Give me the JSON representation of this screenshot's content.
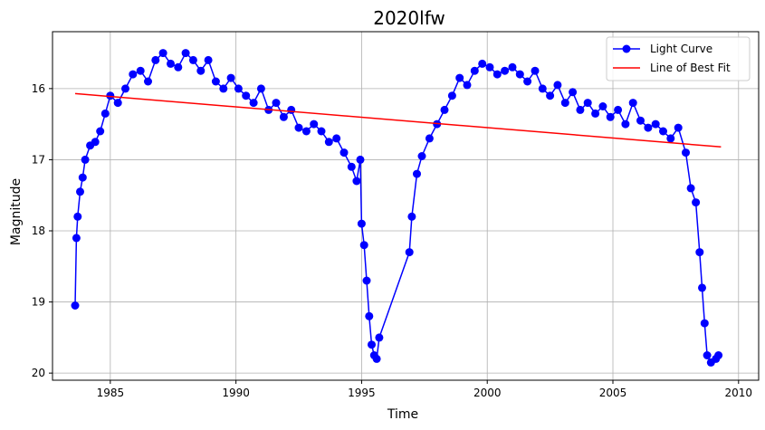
{
  "chart_data": {
    "type": "line",
    "title": "2020lfw",
    "xlabel": "Time",
    "ylabel": "Magnitude",
    "xlim": [
      1982.7,
      2010.8
    ],
    "ylim": [
      20.1,
      15.2
    ],
    "y_inverted": true,
    "xticks": [
      1985,
      1990,
      1995,
      2000,
      2005,
      2010
    ],
    "yticks": [
      16,
      17,
      18,
      19,
      20
    ],
    "grid": true,
    "legend_position": "top-right",
    "series": [
      {
        "name": "Light Curve",
        "color": "#0000ff",
        "marker": "circle",
        "x": [
          1983.6,
          1983.65,
          1983.7,
          1983.8,
          1983.9,
          1984.0,
          1984.2,
          1984.4,
          1984.6,
          1984.8,
          1985.0,
          1985.3,
          1985.6,
          1985.9,
          1986.2,
          1986.5,
          1986.8,
          1987.1,
          1987.4,
          1987.7,
          1988.0,
          1988.3,
          1988.6,
          1988.9,
          1989.2,
          1989.5,
          1989.8,
          1990.1,
          1990.4,
          1990.7,
          1991.0,
          1991.3,
          1991.6,
          1991.9,
          1992.2,
          1992.5,
          1992.8,
          1993.1,
          1993.4,
          1993.7,
          1994.0,
          1994.3,
          1994.6,
          1994.8,
          1994.95,
          1995.0,
          1995.1,
          1995.2,
          1995.3,
          1995.4,
          1995.5,
          1995.6,
          1995.7,
          1996.9,
          1997.0,
          1997.2,
          1997.4,
          1997.7,
          1998.0,
          1998.3,
          1998.6,
          1998.9,
          1999.2,
          1999.5,
          1999.8,
          2000.1,
          2000.4,
          2000.7,
          2001.0,
          2001.3,
          2001.6,
          2001.9,
          2002.2,
          2002.5,
          2002.8,
          2003.1,
          2003.4,
          2003.7,
          2004.0,
          2004.3,
          2004.6,
          2004.9,
          2005.2,
          2005.5,
          2005.8,
          2006.1,
          2006.4,
          2006.7,
          2007.0,
          2007.3,
          2007.6,
          2007.9,
          2008.1,
          2008.3,
          2008.45,
          2008.55,
          2008.65,
          2008.75,
          2008.9,
          2009.1,
          2009.2
        ],
        "y": [
          19.05,
          18.1,
          17.8,
          17.45,
          17.25,
          17.0,
          16.8,
          16.75,
          16.6,
          16.35,
          16.1,
          16.2,
          16.0,
          15.8,
          15.75,
          15.9,
          15.6,
          15.5,
          15.65,
          15.7,
          15.5,
          15.6,
          15.75,
          15.6,
          15.9,
          16.0,
          15.85,
          16.0,
          16.1,
          16.2,
          16.0,
          16.3,
          16.2,
          16.4,
          16.3,
          16.55,
          16.6,
          16.5,
          16.6,
          16.75,
          16.7,
          16.9,
          17.1,
          17.3,
          17.0,
          17.9,
          18.2,
          18.7,
          19.2,
          19.6,
          19.75,
          19.8,
          19.5,
          18.3,
          17.8,
          17.2,
          16.95,
          16.7,
          16.5,
          16.3,
          16.1,
          15.85,
          15.95,
          15.75,
          15.65,
          15.7,
          15.8,
          15.75,
          15.7,
          15.8,
          15.9,
          15.75,
          16.0,
          16.1,
          15.95,
          16.2,
          16.05,
          16.3,
          16.2,
          16.35,
          16.25,
          16.4,
          16.3,
          16.5,
          16.2,
          16.45,
          16.55,
          16.5,
          16.6,
          16.7,
          16.55,
          16.9,
          17.4,
          17.6,
          18.3,
          18.8,
          19.3,
          19.75,
          19.85,
          19.8,
          19.75
        ]
      },
      {
        "name": "Line of Best Fit",
        "color": "#ff0000",
        "marker": "none",
        "x": [
          1983.6,
          2009.3
        ],
        "y": [
          16.07,
          16.82
        ]
      }
    ]
  }
}
